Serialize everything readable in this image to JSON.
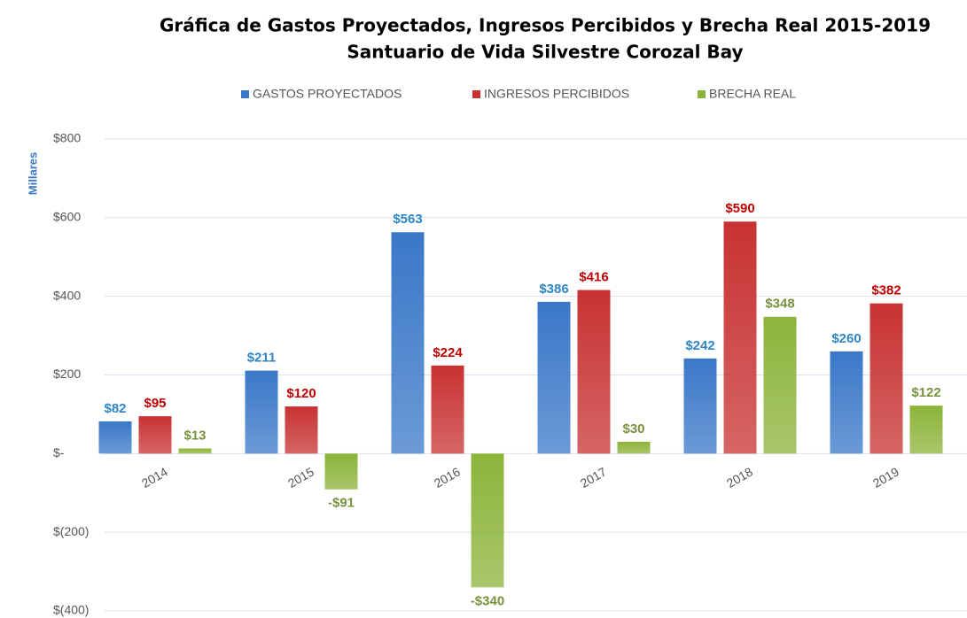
{
  "chart_data": {
    "type": "bar",
    "title": "Gráfica de Gastos Proyectados, Ingresos Percibidos y Brecha Real 2015-2019",
    "subtitle": "Santuario de Vida Silvestre Corozal Bay",
    "y_label": "Millares",
    "categories": [
      "2014",
      "2015",
      "2016",
      "2017",
      "2018",
      "2019"
    ],
    "series": [
      {
        "name": "GASTOS PROYECTADOS",
        "color": "#3a78c8",
        "values": [
          82,
          211,
          563,
          386,
          242,
          260
        ],
        "value_labels": [
          "$82",
          "$211",
          "$563",
          "$386",
          "$242",
          "$260"
        ],
        "label_color": "#2e86c8"
      },
      {
        "name": "INGRESOS PERCIBIDOS",
        "color": "#c83232",
        "values": [
          95,
          120,
          224,
          416,
          590,
          382
        ],
        "value_labels": [
          "$95",
          "$120",
          "$224",
          "$416",
          "$590",
          "$382"
        ],
        "label_color": "#c00000"
      },
      {
        "name": "BRECHA REAL",
        "color": "#8cb43a",
        "values": [
          13,
          -91,
          -340,
          30,
          348,
          122
        ],
        "value_labels": [
          "$13",
          "-$91",
          "-$340",
          "$30",
          "$348",
          "$122"
        ],
        "label_color": "#76923c"
      }
    ],
    "ylim": [
      -400,
      800
    ],
    "yticks": [
      {
        "value": -400,
        "label": "$(400)"
      },
      {
        "value": -200,
        "label": "$(200)"
      },
      {
        "value": 0,
        "label": "$-"
      },
      {
        "value": 200,
        "label": "$200"
      },
      {
        "value": 400,
        "label": "$400"
      },
      {
        "value": 600,
        "label": "$600"
      },
      {
        "value": 800,
        "label": "$800"
      }
    ],
    "grid": true,
    "legend": "top"
  }
}
